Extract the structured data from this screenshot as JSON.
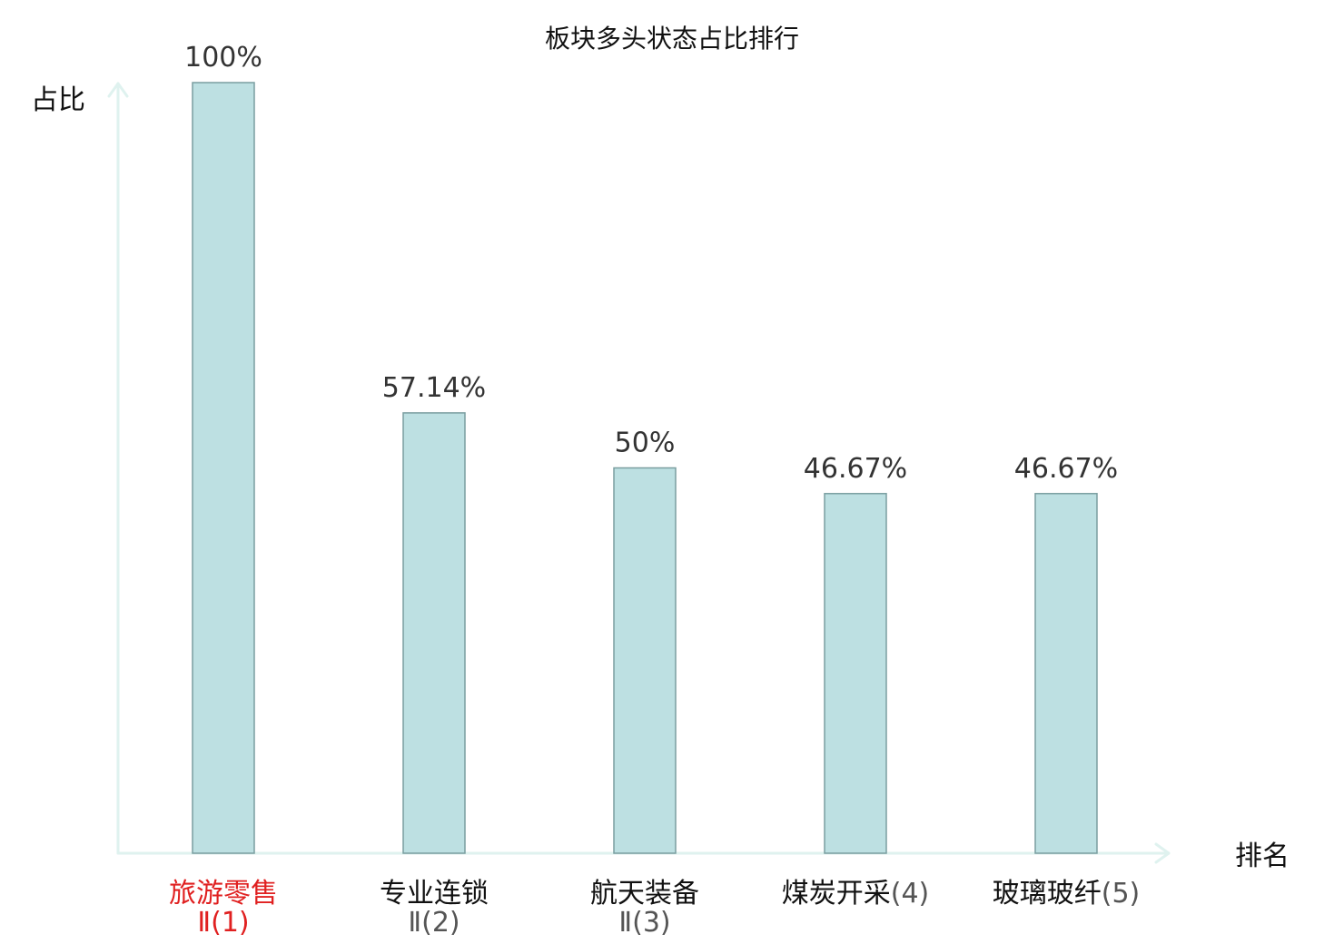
{
  "chart_data": {
    "type": "bar",
    "title": "板块多头状态占比排行",
    "ylabel": "占比",
    "xlabel": "排名",
    "ylim": [
      0,
      100
    ],
    "grid": false,
    "categories": [
      {
        "name": "旅游零售",
        "suffix": "Ⅱ(1)",
        "highlight": true
      },
      {
        "name": "专业连锁",
        "suffix": "Ⅱ(2)",
        "highlight": false
      },
      {
        "name": "航天装备",
        "suffix": "Ⅱ(3)",
        "highlight": false
      },
      {
        "name": "煤炭开采",
        "suffix": "(4)",
        "highlight": false
      },
      {
        "name": "玻璃玻纤",
        "suffix": "(5)",
        "highlight": false
      }
    ],
    "values": [
      100,
      57.14,
      50,
      46.67,
      46.67
    ],
    "value_labels": [
      "100%",
      "57.14%",
      "50%",
      "46.67%",
      "46.67%"
    ],
    "colors": {
      "bar_fill": "#bde0e2",
      "bar_stroke": "#7a9ea0",
      "axis": "#dff2ef",
      "highlight": "#e02020"
    }
  }
}
